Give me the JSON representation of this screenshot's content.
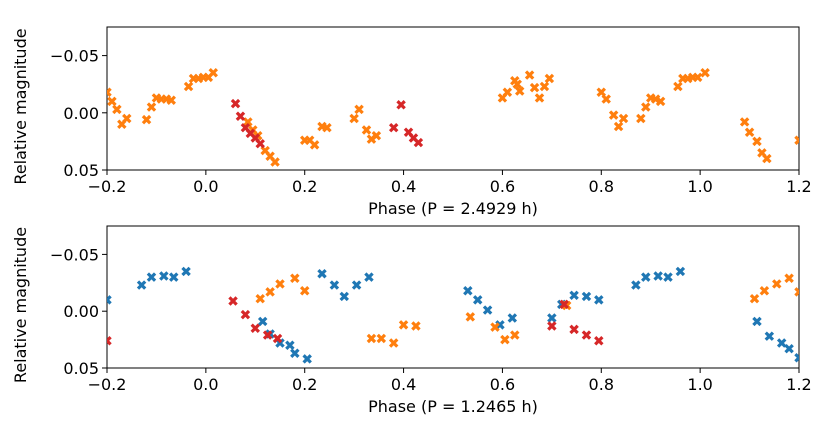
{
  "colors": {
    "blue": "#1f77b4",
    "orange": "#ff7f0e",
    "red": "#d62728"
  },
  "chart_data": [
    {
      "type": "scatter",
      "xlabel": "Phase (P = 2.4929 h)",
      "ylabel": "Relative magnitude",
      "xlim": [
        -0.2,
        1.2
      ],
      "ylim": [
        0.05,
        -0.075
      ],
      "y_inverted": true,
      "grid": false,
      "xticks": [
        "−0.2",
        "0.0",
        "0.2",
        "0.4",
        "0.6",
        "0.8",
        "1.0",
        "1.2"
      ],
      "xtick_values": [
        -0.2,
        0.0,
        0.2,
        0.4,
        0.6,
        0.8,
        1.0,
        1.2
      ],
      "yticks": [
        "−0.05",
        "0.00",
        "0.05"
      ],
      "ytick_values": [
        -0.05,
        0.0,
        0.05
      ],
      "series": [
        {
          "color": "orange",
          "points": [
            [
              -0.2,
              -0.018
            ],
            [
              -0.19,
              -0.01
            ],
            [
              -0.18,
              -0.003
            ],
            [
              -0.17,
              0.01
            ],
            [
              -0.16,
              0.005
            ],
            [
              -0.12,
              0.006
            ],
            [
              -0.11,
              -0.005
            ],
            [
              -0.1,
              -0.013
            ],
            [
              -0.09,
              -0.012
            ],
            [
              -0.08,
              -0.012
            ],
            [
              -0.07,
              -0.011
            ],
            [
              -0.035,
              -0.023
            ],
            [
              -0.025,
              -0.03
            ],
            [
              -0.015,
              -0.03
            ],
            [
              -0.005,
              -0.031
            ],
            [
              0.005,
              -0.031
            ],
            [
              0.015,
              -0.035
            ],
            [
              0.085,
              0.008
            ],
            [
              0.095,
              0.015
            ],
            [
              0.105,
              0.02
            ],
            [
              0.12,
              0.033
            ],
            [
              0.13,
              0.038
            ],
            [
              0.14,
              0.043
            ],
            [
              0.2,
              0.024
            ],
            [
              0.21,
              0.024
            ],
            [
              0.22,
              0.028
            ],
            [
              0.235,
              0.012
            ],
            [
              0.245,
              0.013
            ],
            [
              0.3,
              0.005
            ],
            [
              0.31,
              -0.003
            ],
            [
              0.325,
              0.015
            ],
            [
              0.335,
              0.023
            ],
            [
              0.345,
              0.02
            ],
            [
              0.6,
              -0.013
            ],
            [
              0.61,
              -0.018
            ],
            [
              0.625,
              -0.028
            ],
            [
              0.63,
              -0.025
            ],
            [
              0.635,
              -0.019
            ],
            [
              0.655,
              -0.033
            ],
            [
              0.665,
              -0.022
            ],
            [
              0.675,
              -0.013
            ],
            [
              0.685,
              -0.023
            ],
            [
              0.695,
              -0.03
            ],
            [
              0.8,
              -0.018
            ],
            [
              0.81,
              -0.012
            ],
            [
              0.825,
              0.002
            ],
            [
              0.835,
              0.012
            ],
            [
              0.845,
              0.005
            ],
            [
              0.88,
              0.005
            ],
            [
              0.89,
              -0.005
            ],
            [
              0.9,
              -0.013
            ],
            [
              0.91,
              -0.012
            ],
            [
              0.92,
              -0.01
            ],
            [
              0.955,
              -0.023
            ],
            [
              0.965,
              -0.03
            ],
            [
              0.975,
              -0.03
            ],
            [
              0.985,
              -0.031
            ],
            [
              0.995,
              -0.031
            ],
            [
              1.01,
              -0.035
            ],
            [
              1.09,
              0.008
            ],
            [
              1.1,
              0.017
            ],
            [
              1.115,
              0.025
            ],
            [
              1.125,
              0.035
            ],
            [
              1.135,
              0.04
            ],
            [
              1.2,
              0.024
            ]
          ]
        },
        {
          "color": "red",
          "points": [
            [
              0.06,
              -0.008
            ],
            [
              0.07,
              0.003
            ],
            [
              0.08,
              0.013
            ],
            [
              0.09,
              0.018
            ],
            [
              0.1,
              0.022
            ],
            [
              0.11,
              0.027
            ],
            [
              0.38,
              0.013
            ],
            [
              0.395,
              -0.007
            ],
            [
              0.41,
              0.017
            ],
            [
              0.42,
              0.022
            ],
            [
              0.43,
              0.026
            ]
          ]
        }
      ]
    },
    {
      "type": "scatter",
      "xlabel": "Phase (P = 1.2465 h)",
      "ylabel": "Relative magnitude",
      "xlim": [
        -0.2,
        1.2
      ],
      "ylim": [
        0.05,
        -0.075
      ],
      "y_inverted": true,
      "grid": false,
      "xticks": [
        "−0.2",
        "0.0",
        "0.2",
        "0.4",
        "0.6",
        "0.8",
        "1.0",
        "1.2"
      ],
      "xtick_values": [
        -0.2,
        0.0,
        0.2,
        0.4,
        0.6,
        0.8,
        1.0,
        1.2
      ],
      "yticks": [
        "−0.05",
        "0.00",
        "0.05"
      ],
      "ytick_values": [
        -0.05,
        0.0,
        0.05
      ],
      "series": [
        {
          "color": "blue",
          "points": [
            [
              -0.2,
              -0.01
            ],
            [
              -0.13,
              -0.023
            ],
            [
              -0.11,
              -0.03
            ],
            [
              -0.085,
              -0.031
            ],
            [
              -0.065,
              -0.03
            ],
            [
              -0.04,
              -0.035
            ],
            [
              0.115,
              0.009
            ],
            [
              0.13,
              0.02
            ],
            [
              0.15,
              0.028
            ],
            [
              0.17,
              0.03
            ],
            [
              0.18,
              0.037
            ],
            [
              0.205,
              0.042
            ],
            [
              0.235,
              -0.033
            ],
            [
              0.26,
              -0.023
            ],
            [
              0.28,
              -0.013
            ],
            [
              0.305,
              -0.023
            ],
            [
              0.33,
              -0.03
            ],
            [
              0.53,
              -0.018
            ],
            [
              0.55,
              -0.01
            ],
            [
              0.57,
              -0.001
            ],
            [
              0.595,
              0.012
            ],
            [
              0.62,
              0.006
            ],
            [
              0.7,
              0.006
            ],
            [
              0.72,
              -0.006
            ],
            [
              0.745,
              -0.014
            ],
            [
              0.77,
              -0.013
            ],
            [
              0.795,
              -0.01
            ],
            [
              0.87,
              -0.023
            ],
            [
              0.89,
              -0.03
            ],
            [
              0.915,
              -0.031
            ],
            [
              0.935,
              -0.03
            ],
            [
              0.96,
              -0.035
            ],
            [
              1.115,
              0.009
            ],
            [
              1.14,
              0.022
            ],
            [
              1.165,
              0.028
            ],
            [
              1.18,
              0.033
            ],
            [
              1.2,
              0.041
            ]
          ]
        },
        {
          "color": "orange",
          "points": [
            [
              0.11,
              -0.011
            ],
            [
              0.13,
              -0.017
            ],
            [
              0.15,
              -0.024
            ],
            [
              0.18,
              -0.029
            ],
            [
              0.2,
              -0.018
            ],
            [
              0.335,
              0.024
            ],
            [
              0.355,
              0.024
            ],
            [
              0.38,
              0.028
            ],
            [
              0.4,
              0.012
            ],
            [
              0.425,
              0.013
            ],
            [
              0.535,
              0.005
            ],
            [
              0.585,
              0.014
            ],
            [
              0.605,
              0.025
            ],
            [
              0.625,
              0.021
            ],
            [
              0.73,
              -0.005
            ],
            [
              1.11,
              -0.011
            ],
            [
              1.13,
              -0.018
            ],
            [
              1.155,
              -0.024
            ],
            [
              1.18,
              -0.029
            ],
            [
              1.2,
              -0.017
            ]
          ]
        },
        {
          "color": "red",
          "points": [
            [
              -0.2,
              0.026
            ],
            [
              0.055,
              -0.009
            ],
            [
              0.08,
              0.003
            ],
            [
              0.1,
              0.015
            ],
            [
              0.125,
              0.021
            ],
            [
              0.145,
              0.024
            ],
            [
              0.7,
              0.013
            ],
            [
              0.725,
              -0.006
            ],
            [
              0.745,
              0.016
            ],
            [
              0.77,
              0.021
            ],
            [
              0.795,
              0.026
            ]
          ]
        }
      ]
    }
  ]
}
